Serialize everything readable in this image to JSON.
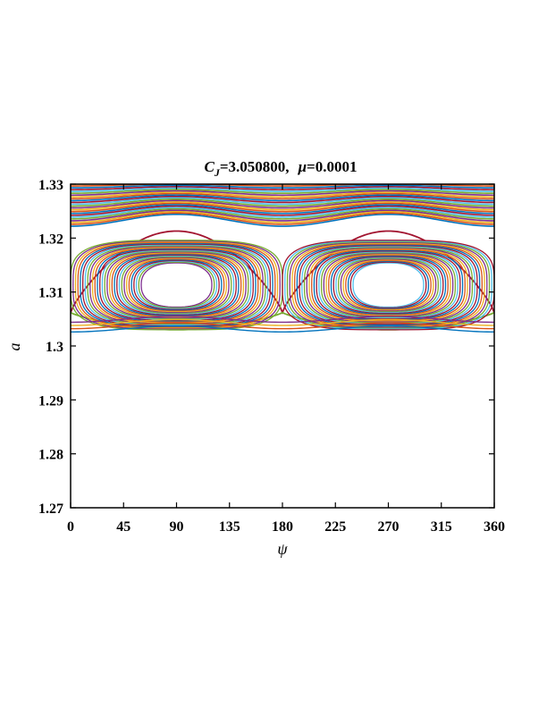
{
  "chart_data": {
    "type": "line",
    "title": {
      "c_symbol": "C",
      "c_subscript": "J",
      "c_value": "=3.050800,",
      "mu_symbol": "μ",
      "mu_value": "=0.0001"
    },
    "xlabel": "ψ",
    "ylabel": "a",
    "xlim": [
      0,
      360
    ],
    "ylim": [
      1.27,
      1.33
    ],
    "x_ticks": [
      0,
      45,
      90,
      135,
      180,
      225,
      270,
      315,
      360
    ],
    "x_tick_labels": [
      "0",
      "45",
      "90",
      "135",
      "180",
      "225",
      "270",
      "315",
      "360"
    ],
    "y_ticks": [
      1.27,
      1.28,
      1.29,
      1.3,
      1.31,
      1.32,
      1.33
    ],
    "y_tick_labels": [
      "1.27",
      "1.28",
      "1.29",
      "1.3",
      "1.31",
      "1.32",
      "1.33"
    ],
    "grid": false,
    "legend": "none",
    "palette": [
      "#0072BD",
      "#D95319",
      "#EDB120",
      "#7E2F8E",
      "#77AC30",
      "#4DBEEE",
      "#A2142F"
    ],
    "resonance_islands": [
      {
        "center_psi": 90,
        "center_a": 1.3113,
        "inner_half_width_deg": 30,
        "inner_half_height": 0.0041,
        "outer_half_width_deg": 90,
        "outer_half_height": 0.0083
      },
      {
        "center_psi": 270,
        "center_a": 1.3113,
        "inner_half_width_deg": 30,
        "inner_half_height": 0.0041,
        "outer_half_width_deg": 90,
        "outer_half_height": 0.0083
      }
    ],
    "separatrix": {
      "a_at_0_180_360": 1.3062,
      "a_at_90_270": 1.3213
    },
    "circulating_curves": {
      "a_min": 1.3222,
      "a_max": 1.33,
      "modulation_at_min": 0.0022,
      "modulation_at_max": 0.0003
    },
    "lower_boundary": {
      "a_at_0_360": 1.3026,
      "a_at_180": 1.3037
    }
  }
}
